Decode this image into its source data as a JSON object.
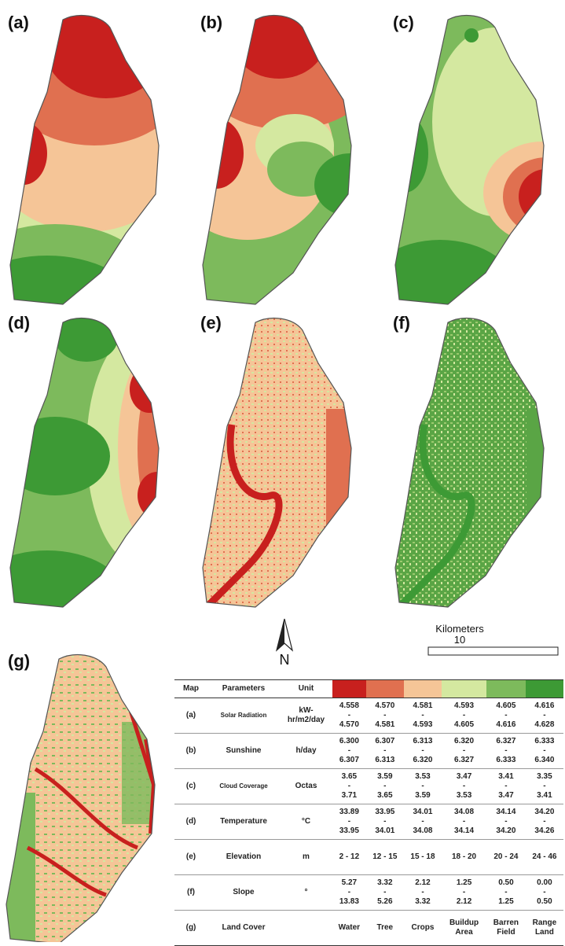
{
  "panels": [
    "(a)",
    "(b)",
    "(c)",
    "(d)",
    "(e)",
    "(f)",
    "(g)"
  ],
  "north": "N",
  "scale": {
    "title": "Kilometers",
    "value": "10"
  },
  "table": {
    "header": [
      "Map",
      "Parameters",
      "Unit"
    ],
    "colors": [
      "#c8201e",
      "#e07050",
      "#f5c597",
      "#d4e8a0",
      "#7dba5c",
      "#3d9a35"
    ],
    "rows": [
      {
        "map": "(a)",
        "parameter": "Solar Radiation",
        "unit": "kW-hr/m2/day",
        "classes": [
          "4.558\n-\n4.570",
          "4.570\n-\n4.581",
          "4.581\n-\n4.593",
          "4.593\n-\n4.605",
          "4.605\n-\n4.616",
          "4.616\n-\n4.628"
        ]
      },
      {
        "map": "(b)",
        "parameter": "Sunshine",
        "unit": "h/day",
        "classes": [
          "6.300\n-\n6.307",
          "6.307\n-\n6.313",
          "6.313\n-\n6.320",
          "6.320\n-\n6.327",
          "6.327\n-\n6.333",
          "6.333\n-\n6.340"
        ]
      },
      {
        "map": "(c)",
        "parameter": "Cloud Coverage",
        "unit": "Octas",
        "classes": [
          "3.65\n-\n3.71",
          "3.59\n-\n3.65",
          "3.53\n-\n3.59",
          "3.47\n-\n3.53",
          "3.41\n-\n3.47",
          "3.35\n-\n3.41"
        ]
      },
      {
        "map": "(d)",
        "parameter": "Temperature",
        "unit": "°C",
        "classes": [
          "33.89\n-\n33.95",
          "33.95\n-\n34.01",
          "34.01\n-\n34.08",
          "34.08\n-\n34.14",
          "34.14\n-\n34.20",
          "34.20\n-\n34.26"
        ]
      },
      {
        "map": "(e)",
        "parameter": "Elevation",
        "unit": "m",
        "classes": [
          "2 - 12",
          "12 - 15",
          "15 - 18",
          "18 - 20",
          "20 - 24",
          "24 - 46"
        ]
      },
      {
        "map": "(f)",
        "parameter": "Slope",
        "unit": "°",
        "classes": [
          "5.27\n-\n13.83",
          "3.32\n-\n5.26",
          "2.12\n-\n3.32",
          "1.25\n-\n2.12",
          "0.50\n-\n1.25",
          "0.00\n-\n0.50"
        ]
      },
      {
        "map": "(g)",
        "parameter": "Land Cover",
        "unit": null,
        "classes": [
          "Water",
          "Tree",
          "Crops",
          "Buildup\nArea",
          "Barren\nField",
          "Range\nLand"
        ]
      }
    ]
  }
}
